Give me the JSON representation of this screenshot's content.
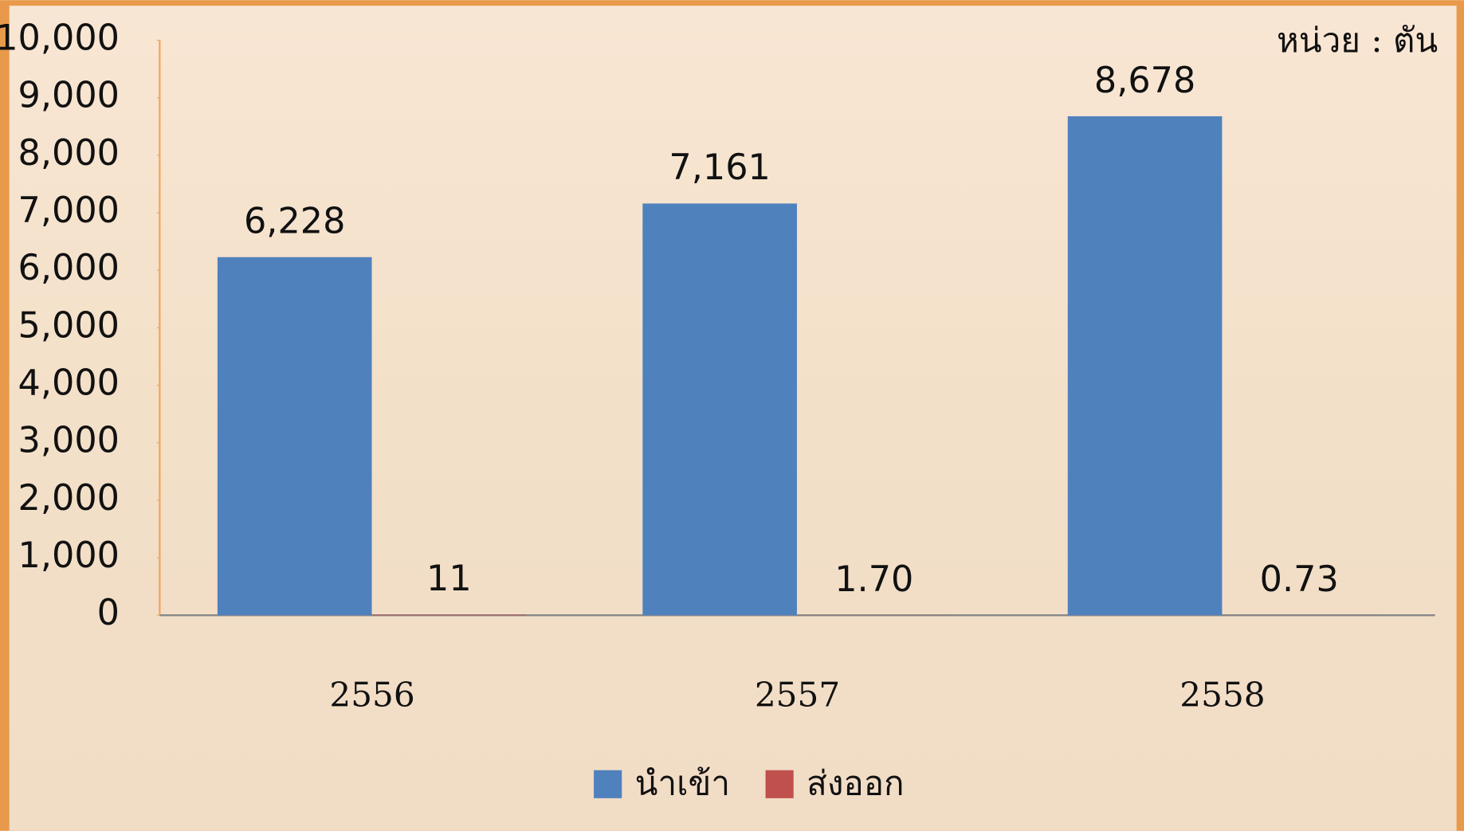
{
  "chart_data": {
    "type": "bar",
    "annotation": "หน่วย : ตัน",
    "categories": [
      "2556",
      "2557",
      "2558"
    ],
    "series": [
      {
        "name": "นำเข้า",
        "color": "#4f81bd",
        "values": [
          6228,
          7161,
          8678
        ],
        "value_labels": [
          "6,228",
          "7,161",
          "8,678"
        ]
      },
      {
        "name": "ส่งออก",
        "color": "#c0504d",
        "values": [
          11,
          1.7,
          0.73
        ],
        "value_labels": [
          "11",
          "1.70",
          "0.73"
        ]
      }
    ],
    "ylim": [
      0,
      10000
    ],
    "yticks": [
      0,
      {
        "value": 1000,
        "label": "1,000"
      },
      {
        "value": 2000,
        "label": "2,000"
      },
      {
        "value": 3000,
        "label": "3,000"
      },
      {
        "value": 4000,
        "label": "4,000"
      },
      {
        "value": 5000,
        "label": "5,000"
      },
      {
        "value": 6000,
        "label": "6,000"
      },
      {
        "value": 7000,
        "label": "7,000"
      },
      {
        "value": 8000,
        "label": "8,000"
      },
      {
        "value": 9000,
        "label": "9,000"
      },
      {
        "value": 10000,
        "label": "10,000"
      }
    ],
    "grid": false,
    "legend": "bottom"
  }
}
